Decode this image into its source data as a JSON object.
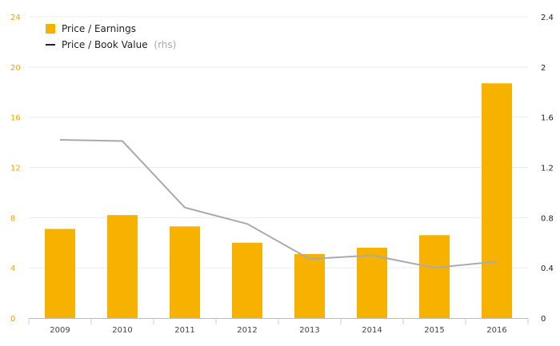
{
  "chart_data": {
    "type": "bar",
    "categories": [
      "2009",
      "2010",
      "2011",
      "2012",
      "2013",
      "2014",
      "2015",
      "2016"
    ],
    "series": [
      {
        "name": "Price / Earnings",
        "type": "bar",
        "axis": "left",
        "values": [
          7.1,
          8.2,
          7.3,
          6.0,
          5.1,
          5.6,
          6.6,
          18.7
        ],
        "color": "#f7b200"
      },
      {
        "name": "Price / Book Value",
        "type": "line",
        "axis": "right",
        "values": [
          1.42,
          1.41,
          0.88,
          0.75,
          0.47,
          0.5,
          0.4,
          0.45
        ],
        "color": "#aaaaaa"
      }
    ],
    "legend": {
      "items": [
        {
          "label": "Price / Earnings",
          "note": "",
          "marker": "square",
          "color": "#f7b200"
        },
        {
          "label": "Price / Book Value",
          "note": "(rhs)",
          "marker": "line",
          "color": "#222222"
        }
      ],
      "position": "top-left"
    },
    "y_left": {
      "ticks": [
        "0",
        "4",
        "8",
        "12",
        "16",
        "20",
        "24"
      ],
      "range": [
        0,
        24
      ]
    },
    "y_right": {
      "ticks": [
        "0",
        "0.4",
        "0.8",
        "1.2",
        "1.6",
        "2",
        "2.4"
      ],
      "range": [
        0,
        2.4
      ]
    },
    "grid": true
  }
}
